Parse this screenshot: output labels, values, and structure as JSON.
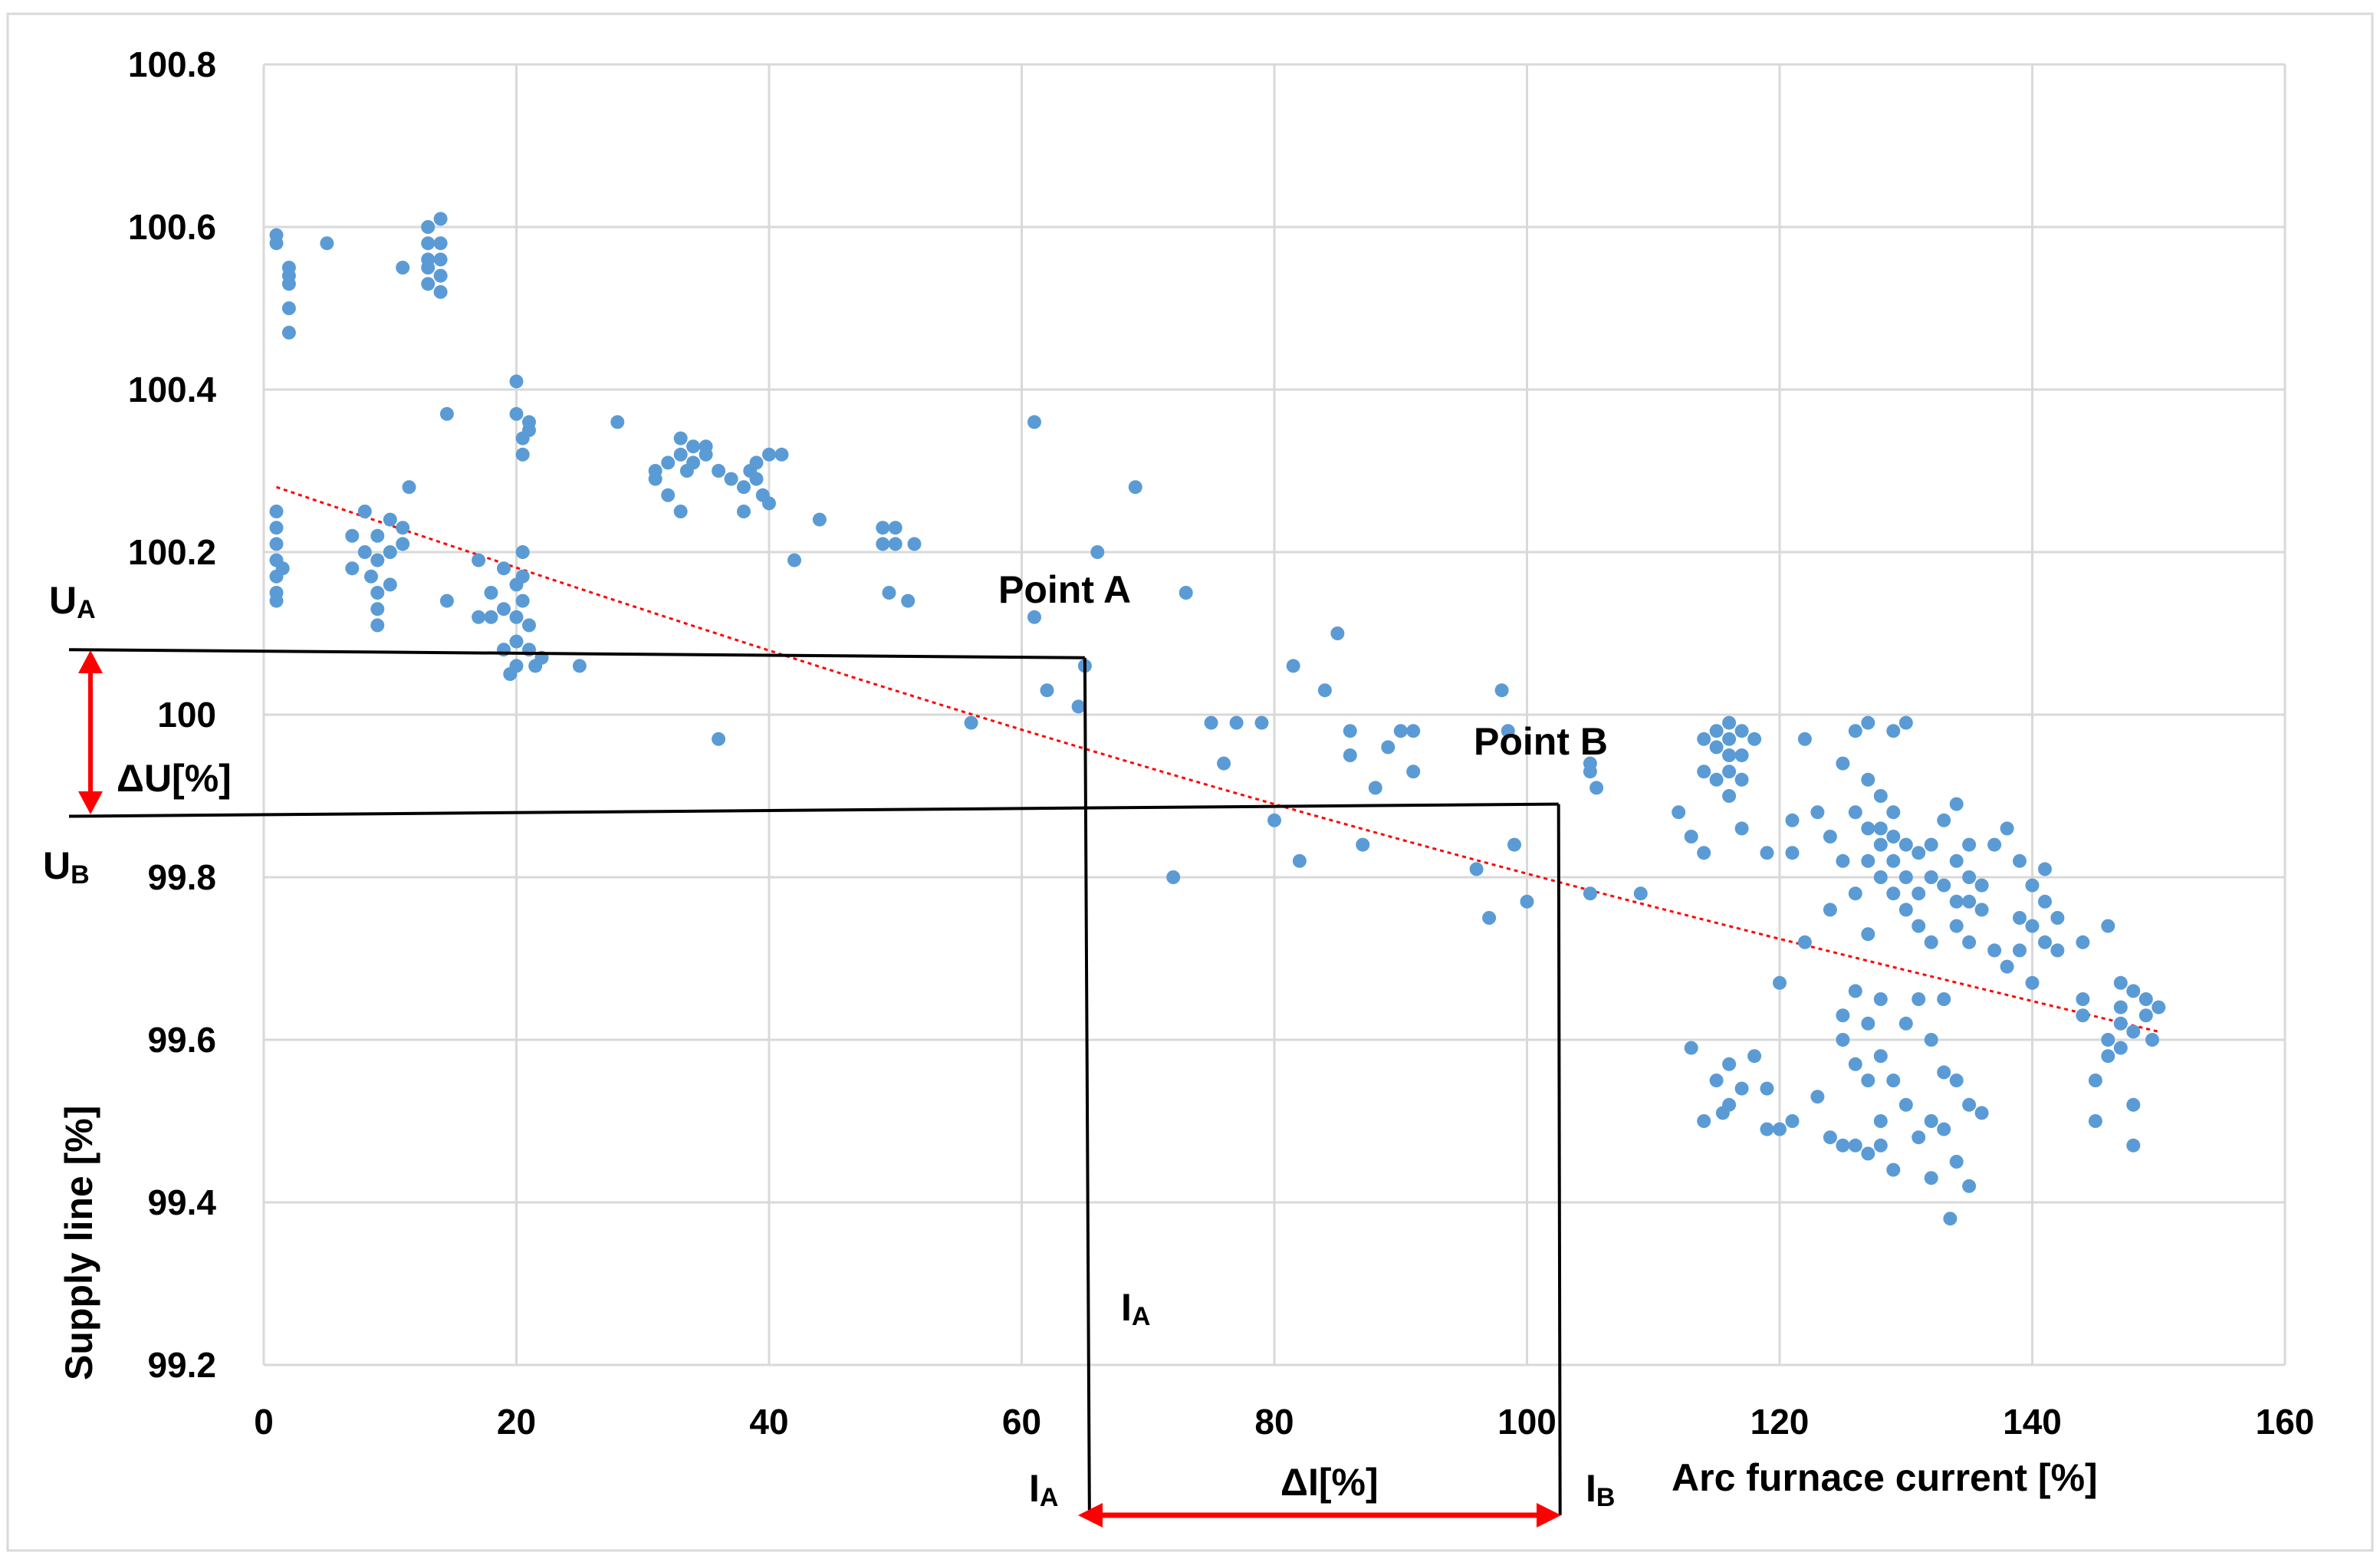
{
  "chart_data": {
    "type": "scatter",
    "title": "",
    "xlabel": "Arc furnace current [%]",
    "ylabel": "Supply line [%]",
    "xlim": [
      0,
      160
    ],
    "ylim": [
      99.2,
      100.8
    ],
    "xticks": [
      "0",
      "20",
      "40",
      "60",
      "80",
      "100",
      "120",
      "140",
      "160"
    ],
    "yticks": [
      "99.2",
      "99.4",
      "99.6",
      "99.8",
      "100",
      "100.2",
      "100.4",
      "100.6",
      "100.8"
    ],
    "grid": true,
    "colors": {
      "points": "#5b9bd5",
      "trend": "#ff0000",
      "guides": "#000000",
      "arrows": "#ff0000"
    },
    "trendline": {
      "x": [
        1,
        150
      ],
      "y": [
        100.28,
        99.61
      ]
    },
    "point_a": {
      "label": "Point A",
      "x": 65,
      "y": 100.07
    },
    "point_b": {
      "label": "Point B",
      "x": 102.5,
      "y": 99.89
    },
    "annotations": {
      "ua": "U",
      "ua_sub": "A",
      "ub": "U",
      "ub_sub": "B",
      "delta_u": "ΔU[%]",
      "ia_top": "I",
      "ia_top_sub": "A",
      "ia_bottom": "I",
      "ia_bottom_sub": "A",
      "ib": "I",
      "ib_sub": "B",
      "delta_i": "ΔI[%]"
    },
    "series": [
      {
        "name": "measurements",
        "points": [
          [
            1,
            100.59
          ],
          [
            1,
            100.58
          ],
          [
            2,
            100.55
          ],
          [
            2,
            100.54
          ],
          [
            2,
            100.53
          ],
          [
            2,
            100.5
          ],
          [
            2,
            100.47
          ],
          [
            5,
            100.58
          ],
          [
            11,
            100.55
          ],
          [
            13,
            100.6
          ],
          [
            13,
            100.58
          ],
          [
            13,
            100.56
          ],
          [
            13,
            100.55
          ],
          [
            13,
            100.53
          ],
          [
            14,
            100.61
          ],
          [
            14,
            100.58
          ],
          [
            14,
            100.56
          ],
          [
            14,
            100.54
          ],
          [
            14,
            100.52
          ],
          [
            14.5,
            100.37
          ],
          [
            20,
            100.41
          ],
          [
            20,
            100.37
          ],
          [
            21,
            100.36
          ],
          [
            21,
            100.35
          ],
          [
            20.5,
            100.34
          ],
          [
            20.5,
            100.32
          ],
          [
            28,
            100.36
          ],
          [
            1,
            100.25
          ],
          [
            1,
            100.23
          ],
          [
            1,
            100.21
          ],
          [
            1,
            100.19
          ],
          [
            1,
            100.17
          ],
          [
            1,
            100.15
          ],
          [
            1,
            100.14
          ],
          [
            1.5,
            100.18
          ],
          [
            7,
            100.22
          ],
          [
            7,
            100.18
          ],
          [
            8,
            100.25
          ],
          [
            8,
            100.2
          ],
          [
            8.5,
            100.17
          ],
          [
            9,
            100.15
          ],
          [
            9,
            100.13
          ],
          [
            9,
            100.11
          ],
          [
            9,
            100.22
          ],
          [
            9,
            100.19
          ],
          [
            10,
            100.24
          ],
          [
            10,
            100.2
          ],
          [
            10,
            100.16
          ],
          [
            11,
            100.23
          ],
          [
            11,
            100.21
          ],
          [
            11.5,
            100.28
          ],
          [
            14.5,
            100.14
          ],
          [
            17,
            100.19
          ],
          [
            17,
            100.12
          ],
          [
            18,
            100.15
          ],
          [
            18,
            100.12
          ],
          [
            19,
            100.18
          ],
          [
            19,
            100.13
          ],
          [
            19,
            100.08
          ],
          [
            19.5,
            100.05
          ],
          [
            20,
            100.16
          ],
          [
            20,
            100.12
          ],
          [
            20,
            100.09
          ],
          [
            20,
            100.06
          ],
          [
            20.5,
            100.2
          ],
          [
            20.5,
            100.17
          ],
          [
            20.5,
            100.14
          ],
          [
            21,
            100.11
          ],
          [
            21,
            100.08
          ],
          [
            21.5,
            100.06
          ],
          [
            22,
            100.07
          ],
          [
            25,
            100.06
          ],
          [
            31,
            100.3
          ],
          [
            31,
            100.29
          ],
          [
            32,
            100.31
          ],
          [
            32,
            100.27
          ],
          [
            33,
            100.34
          ],
          [
            33,
            100.32
          ],
          [
            33.5,
            100.3
          ],
          [
            34,
            100.33
          ],
          [
            34,
            100.31
          ],
          [
            35,
            100.32
          ],
          [
            35,
            100.33
          ],
          [
            33,
            100.25
          ],
          [
            36,
            100.3
          ],
          [
            37,
            100.29
          ],
          [
            38,
            100.25
          ],
          [
            38,
            100.28
          ],
          [
            38.5,
            100.3
          ],
          [
            39,
            100.31
          ],
          [
            39,
            100.29
          ],
          [
            39.5,
            100.27
          ],
          [
            40,
            100.26
          ],
          [
            40,
            100.32
          ],
          [
            41,
            100.32
          ],
          [
            42,
            100.19
          ],
          [
            44,
            100.24
          ],
          [
            36,
            99.97
          ],
          [
            49,
            100.23
          ],
          [
            50,
            100.23
          ],
          [
            49,
            100.21
          ],
          [
            50,
            100.21
          ],
          [
            51.5,
            100.21
          ],
          [
            49.5,
            100.15
          ],
          [
            51,
            100.14
          ],
          [
            56,
            99.99
          ],
          [
            61,
            100.36
          ],
          [
            61,
            100.12
          ],
          [
            62,
            100.03
          ],
          [
            64.5,
            100.01
          ],
          [
            65,
            100.06
          ],
          [
            66,
            100.2
          ],
          [
            69,
            100.28
          ],
          [
            73,
            100.15
          ],
          [
            72,
            99.8
          ],
          [
            75,
            99.99
          ],
          [
            76,
            99.94
          ],
          [
            77,
            99.99
          ],
          [
            79,
            99.99
          ],
          [
            80,
            99.87
          ],
          [
            81.5,
            100.06
          ],
          [
            82,
            99.82
          ],
          [
            84,
            100.03
          ],
          [
            85,
            100.1
          ],
          [
            86,
            99.98
          ],
          [
            86,
            99.95
          ],
          [
            87,
            99.84
          ],
          [
            88,
            99.91
          ],
          [
            89,
            99.96
          ],
          [
            90,
            99.98
          ],
          [
            91,
            99.93
          ],
          [
            91,
            99.98
          ],
          [
            96,
            99.81
          ],
          [
            97,
            99.75
          ],
          [
            98,
            100.03
          ],
          [
            99,
            99.84
          ],
          [
            100,
            99.77
          ],
          [
            98.5,
            99.98
          ],
          [
            105,
            99.94
          ],
          [
            105,
            99.93
          ],
          [
            105.5,
            99.91
          ],
          [
            105,
            99.78
          ],
          [
            109,
            99.78
          ],
          [
            112,
            99.88
          ],
          [
            113,
            99.85
          ],
          [
            113,
            99.59
          ],
          [
            114,
            99.97
          ],
          [
            114,
            99.93
          ],
          [
            114,
            99.83
          ],
          [
            114,
            99.5
          ],
          [
            115,
            99.98
          ],
          [
            115,
            99.96
          ],
          [
            115,
            99.92
          ],
          [
            115,
            99.55
          ],
          [
            115.5,
            99.51
          ],
          [
            116,
            99.99
          ],
          [
            116,
            99.97
          ],
          [
            116,
            99.95
          ],
          [
            116,
            99.93
          ],
          [
            116,
            99.9
          ],
          [
            116,
            99.52
          ],
          [
            116,
            99.57
          ],
          [
            117,
            99.98
          ],
          [
            117,
            99.95
          ],
          [
            117,
            99.92
          ],
          [
            117,
            99.86
          ],
          [
            117,
            99.54
          ],
          [
            118,
            99.97
          ],
          [
            118,
            99.58
          ],
          [
            119,
            99.83
          ],
          [
            119,
            99.49
          ],
          [
            119,
            99.54
          ],
          [
            120,
            99.67
          ],
          [
            120,
            99.49
          ],
          [
            121,
            99.87
          ],
          [
            121,
            99.83
          ],
          [
            121,
            99.5
          ],
          [
            122,
            99.97
          ],
          [
            122,
            99.72
          ],
          [
            123,
            99.88
          ],
          [
            123,
            99.53
          ],
          [
            124,
            99.85
          ],
          [
            124,
            99.76
          ],
          [
            124,
            99.48
          ],
          [
            125,
            99.94
          ],
          [
            125,
            99.82
          ],
          [
            125,
            99.63
          ],
          [
            125,
            99.6
          ],
          [
            125,
            99.47
          ],
          [
            126,
            99.98
          ],
          [
            126,
            99.88
          ],
          [
            126,
            99.78
          ],
          [
            126,
            99.66
          ],
          [
            126,
            99.57
          ],
          [
            126,
            99.47
          ],
          [
            127,
            99.99
          ],
          [
            127,
            99.92
          ],
          [
            127,
            99.86
          ],
          [
            127,
            99.82
          ],
          [
            127,
            99.73
          ],
          [
            127,
            99.62
          ],
          [
            127,
            99.55
          ],
          [
            127,
            99.46
          ],
          [
            128,
            99.9
          ],
          [
            128,
            99.86
          ],
          [
            128,
            99.84
          ],
          [
            128,
            99.8
          ],
          [
            128,
            99.65
          ],
          [
            128,
            99.58
          ],
          [
            128,
            99.5
          ],
          [
            128,
            99.47
          ],
          [
            129,
            99.98
          ],
          [
            129,
            99.88
          ],
          [
            129,
            99.85
          ],
          [
            129,
            99.82
          ],
          [
            129,
            99.78
          ],
          [
            129,
            99.55
          ],
          [
            129,
            99.44
          ],
          [
            130,
            99.99
          ],
          [
            130,
            99.84
          ],
          [
            130,
            99.8
          ],
          [
            130,
            99.76
          ],
          [
            130,
            99.62
          ],
          [
            130,
            99.52
          ],
          [
            131,
            99.83
          ],
          [
            131,
            99.78
          ],
          [
            131,
            99.74
          ],
          [
            131,
            99.65
          ],
          [
            131,
            99.48
          ],
          [
            132,
            99.84
          ],
          [
            132,
            99.8
          ],
          [
            132,
            99.72
          ],
          [
            132,
            99.6
          ],
          [
            132,
            99.5
          ],
          [
            132,
            99.43
          ],
          [
            133,
            99.87
          ],
          [
            133,
            99.79
          ],
          [
            133,
            99.65
          ],
          [
            133,
            99.56
          ],
          [
            133,
            99.49
          ],
          [
            133.5,
            99.38
          ],
          [
            134,
            99.89
          ],
          [
            134,
            99.82
          ],
          [
            134,
            99.77
          ],
          [
            134,
            99.74
          ],
          [
            134,
            99.55
          ],
          [
            134,
            99.45
          ],
          [
            135,
            99.84
          ],
          [
            135,
            99.8
          ],
          [
            135,
            99.77
          ],
          [
            135,
            99.72
          ],
          [
            135,
            99.52
          ],
          [
            135,
            99.42
          ],
          [
            136,
            99.79
          ],
          [
            136,
            99.76
          ],
          [
            136,
            99.51
          ],
          [
            137,
            99.84
          ],
          [
            137,
            99.71
          ],
          [
            138,
            99.86
          ],
          [
            138,
            99.69
          ],
          [
            139,
            99.82
          ],
          [
            139,
            99.75
          ],
          [
            139,
            99.71
          ],
          [
            140,
            99.79
          ],
          [
            140,
            99.74
          ],
          [
            140,
            99.67
          ],
          [
            141,
            99.81
          ],
          [
            141,
            99.77
          ],
          [
            141,
            99.72
          ],
          [
            142,
            99.75
          ],
          [
            142,
            99.71
          ],
          [
            144,
            99.72
          ],
          [
            144,
            99.65
          ],
          [
            144,
            99.63
          ],
          [
            145,
            99.55
          ],
          [
            145,
            99.5
          ],
          [
            146,
            99.74
          ],
          [
            146,
            99.6
          ],
          [
            146,
            99.58
          ],
          [
            147,
            99.67
          ],
          [
            147,
            99.64
          ],
          [
            147,
            99.62
          ],
          [
            147,
            99.59
          ],
          [
            148,
            99.66
          ],
          [
            148,
            99.61
          ],
          [
            148,
            99.52
          ],
          [
            148,
            99.47
          ],
          [
            149,
            99.65
          ],
          [
            149,
            99.63
          ],
          [
            149.5,
            99.6
          ],
          [
            150,
            99.64
          ]
        ]
      }
    ]
  }
}
